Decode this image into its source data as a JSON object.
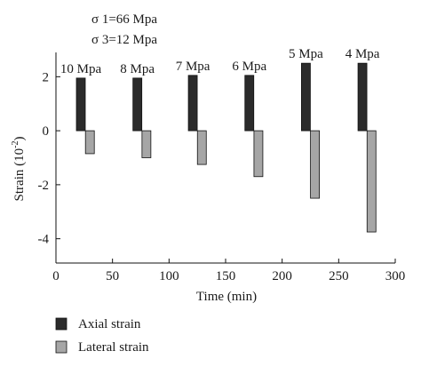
{
  "chart_data": {
    "type": "bar",
    "title": "",
    "xlabel": "Time (min)",
    "ylabel": "Strain (10",
    "ylabel_exponent": "-2",
    "ylabel_close": ")",
    "xlim": [
      0,
      300
    ],
    "ylim": [
      -4.9,
      2.9
    ],
    "xticks": [
      0,
      50,
      100,
      150,
      200,
      250,
      300
    ],
    "yticks": [
      2,
      0,
      -2,
      -4
    ],
    "grid": false,
    "stress_annotations": [
      "σ 1=66 Mpa",
      "σ 3=12 Mpa"
    ],
    "confining_pressures": [
      "10 Mpa",
      "8 Mpa",
      "7 Mpa",
      "6 Mpa",
      "5 Mpa",
      "4 Mpa"
    ],
    "x": [
      25,
      75,
      125,
      175,
      225,
      275
    ],
    "series": [
      {
        "name": "Axial strain",
        "color": "#2b2b2b",
        "x": [
          22,
          72,
          121,
          171,
          221,
          271
        ],
        "values": [
          1.95,
          1.95,
          2.05,
          2.05,
          2.5,
          2.5
        ]
      },
      {
        "name": "Lateral strain",
        "color": "#a6a6a6",
        "x": [
          30,
          80,
          129,
          179,
          229,
          279
        ],
        "values": [
          -0.85,
          -1.0,
          -1.25,
          -1.7,
          -2.5,
          -3.75
        ]
      }
    ],
    "legend_position": "bottom-left"
  }
}
